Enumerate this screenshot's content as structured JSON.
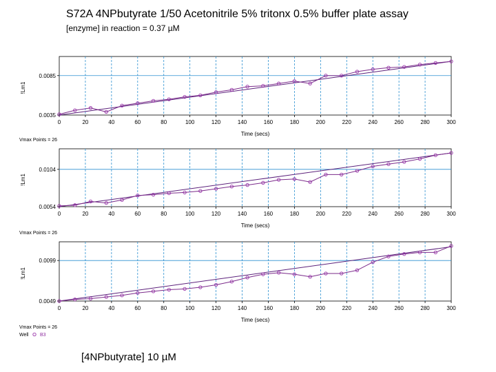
{
  "title": "S72A 4NPbutyrate 1/50   Acetonitrile 5% tritonx 0.5% buffer plate assay",
  "subtitle": "[enzyme] in reaction = 0.37 µM",
  "footer_label": "[4NPbutyrate] 10 µM",
  "colors": {
    "data_line": "#7a2a8a",
    "fit_line": "#5a1f7a",
    "marker": "#9933aa",
    "vgrid": "#2a8fd0",
    "hgrid": "#2a8fd0",
    "legend_text": "#8e2ea0"
  },
  "chart_data": [
    {
      "type": "line",
      "xlabel": "Time (secs)",
      "ylabel": "!Lm1",
      "xlim": [
        0,
        300
      ],
      "ylim": [
        0.0035,
        0.0104
      ],
      "x_ticks": [
        0,
        20,
        40,
        60,
        80,
        100,
        120,
        140,
        160,
        180,
        200,
        220,
        240,
        260,
        280,
        300
      ],
      "y_ticks": [
        0.0035,
        0.0085
      ],
      "y_tick_labels": [
        "0.0035",
        "0.0085"
      ],
      "footnote": "Vmax Points = 26",
      "x": [
        0,
        12,
        24,
        36,
        48,
        60,
        72,
        84,
        96,
        108,
        120,
        132,
        144,
        156,
        168,
        180,
        192,
        204,
        216,
        228,
        240,
        252,
        264,
        276,
        288,
        300
      ],
      "series": [
        {
          "values": [
            0.0036,
            0.0041,
            0.0044,
            0.0039,
            0.0047,
            0.005,
            0.0053,
            0.0055,
            0.0058,
            0.006,
            0.0064,
            0.0067,
            0.0071,
            0.0072,
            0.0075,
            0.0078,
            0.0075,
            0.0085,
            0.0085,
            0.009,
            0.0093,
            0.0095,
            0.0096,
            0.0099,
            0.0101,
            0.0103
          ]
        }
      ],
      "fit": [
        0.0035,
        0.0103
      ]
    },
    {
      "type": "line",
      "xlabel": "Time (secs)",
      "ylabel": "!Lm1",
      "xlim": [
        0,
        300
      ],
      "ylim": [
        0.0054,
        0.0126
      ],
      "x_ticks": [
        0,
        20,
        40,
        60,
        80,
        100,
        120,
        140,
        160,
        180,
        200,
        220,
        240,
        260,
        280,
        300
      ],
      "y_ticks": [
        0.0054,
        0.0104
      ],
      "y_tick_labels": [
        "0.0054",
        "0.0104"
      ],
      "footnote": "Vmax Points = 26",
      "x": [
        0,
        12,
        24,
        36,
        48,
        60,
        72,
        84,
        96,
        108,
        120,
        132,
        144,
        156,
        168,
        180,
        192,
        204,
        216,
        228,
        240,
        252,
        264,
        276,
        288,
        300
      ],
      "series": [
        {
          "values": [
            0.0055,
            0.0056,
            0.0061,
            0.0059,
            0.0063,
            0.0069,
            0.007,
            0.0072,
            0.0073,
            0.0075,
            0.0078,
            0.0081,
            0.0083,
            0.0086,
            0.009,
            0.0091,
            0.0087,
            0.0097,
            0.0097,
            0.0102,
            0.0108,
            0.0111,
            0.0114,
            0.0118,
            0.0123,
            0.0126
          ]
        }
      ],
      "fit": [
        0.0054,
        0.0126
      ]
    },
    {
      "type": "line",
      "xlabel": "Time (secs)",
      "ylabel": "!Lm1",
      "xlim": [
        0,
        300
      ],
      "ylim": [
        0.0049,
        0.0117
      ],
      "x_ticks": [
        0,
        20,
        40,
        60,
        80,
        100,
        120,
        140,
        160,
        180,
        200,
        220,
        240,
        260,
        280,
        300
      ],
      "y_ticks": [
        0.0049,
        0.0099
      ],
      "y_tick_labels": [
        "0.0049",
        "0.0099"
      ],
      "footnote": "Vmax Points = 26",
      "x": [
        0,
        12,
        24,
        36,
        48,
        60,
        72,
        84,
        96,
        108,
        120,
        132,
        144,
        156,
        168,
        180,
        192,
        204,
        216,
        228,
        240,
        252,
        264,
        276,
        288,
        300
      ],
      "series": [
        {
          "values": [
            0.0049,
            0.0051,
            0.0052,
            0.0054,
            0.0056,
            0.0059,
            0.0061,
            0.0063,
            0.0064,
            0.0066,
            0.0069,
            0.0073,
            0.0078,
            0.0082,
            0.0084,
            0.0082,
            0.0079,
            0.0083,
            0.0083,
            0.0087,
            0.0097,
            0.0104,
            0.0107,
            0.0109,
            0.0109,
            0.0117
          ]
        }
      ],
      "fit": [
        0.0049,
        0.0116
      ]
    }
  ],
  "legend": {
    "label": "Well",
    "entry": "B3"
  }
}
